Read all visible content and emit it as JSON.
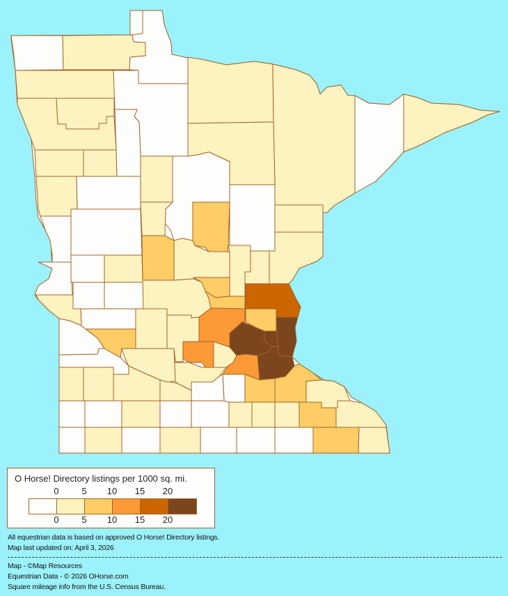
{
  "colors": {
    "background": "#9cf2fc",
    "border": "#a0632a",
    "levels": [
      "#fdfefb",
      "#fdf3c0",
      "#fecd66",
      "#fd9a37",
      "#cc6600",
      "#7b451e"
    ]
  },
  "map": {
    "region": "Minnesota counties",
    "county_levels": [
      0,
      1,
      0,
      1,
      1,
      0,
      1,
      1,
      0,
      1,
      1,
      1,
      1,
      0,
      2,
      1,
      1,
      2,
      1,
      2,
      2,
      3,
      4,
      2,
      5,
      5,
      5,
      5,
      3,
      1,
      3,
      2,
      2,
      1,
      2,
      1,
      2,
      1,
      0,
      1,
      1,
      1,
      0,
      0,
      0,
      0,
      0,
      1,
      0,
      1,
      0,
      0,
      0,
      1,
      0,
      1,
      1,
      1,
      1,
      1,
      1,
      1,
      2,
      0,
      0,
      1,
      0,
      1,
      0,
      0,
      0,
      1,
      0,
      0,
      1,
      0,
      1,
      0,
      1,
      1,
      1,
      1,
      1
    ]
  },
  "legend": {
    "title": "O Horse! Directory listings per 1000 sq. mi.",
    "top_ticks": [
      "0",
      "5",
      "10",
      "15",
      "20"
    ],
    "bottom_ticks": [
      "0",
      "5",
      "10",
      "15",
      "20"
    ]
  },
  "footer": {
    "note1": "All equestrian data is based on approved O Horse! Directory listings.",
    "note2": "Map last updated on: April 3, 2026",
    "credit1": "Map - ©Map Resources",
    "credit2": "Equestrian Data - © 2026 OHorse.com",
    "credit3": "Square mileage info from the U.S. Census Bureau."
  }
}
